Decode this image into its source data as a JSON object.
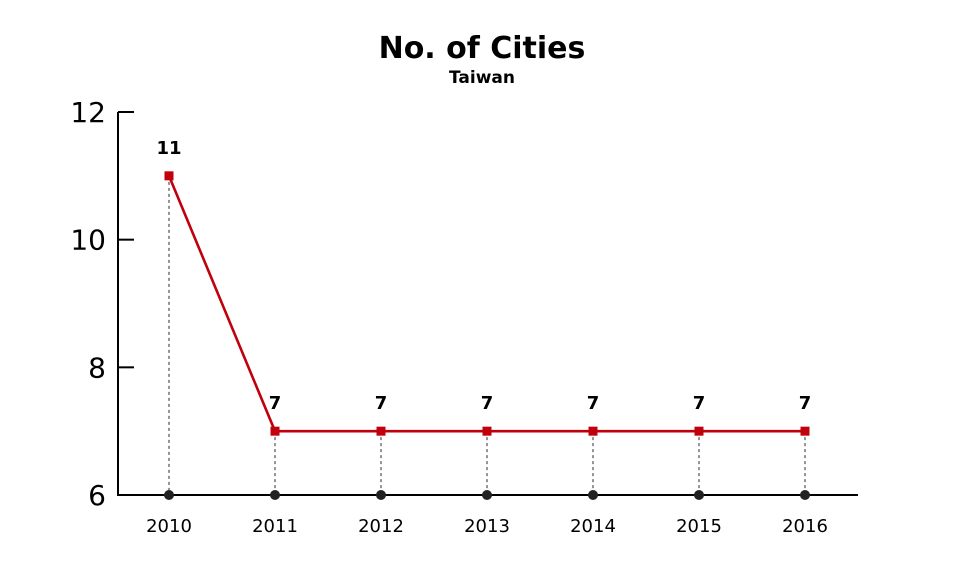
{
  "chart_data": {
    "type": "line",
    "title": "No. of Cities",
    "subtitle": "Taiwan",
    "xlabel": "",
    "ylabel": "",
    "categories": [
      "2010",
      "2011",
      "2012",
      "2013",
      "2014",
      "2015",
      "2016"
    ],
    "series": [
      {
        "values": [
          11,
          7,
          7,
          7,
          7,
          7,
          7
        ],
        "color": "#c0000c"
      }
    ],
    "data_labels": [
      "11",
      "7",
      "7",
      "7",
      "7",
      "7",
      "7"
    ],
    "ylim": [
      6,
      12
    ],
    "yticks": [
      "6",
      "8",
      "10",
      "12"
    ],
    "grid": false,
    "legend": "none",
    "drop_line_color": "#666666",
    "baseline_marker_color": "#222222"
  }
}
